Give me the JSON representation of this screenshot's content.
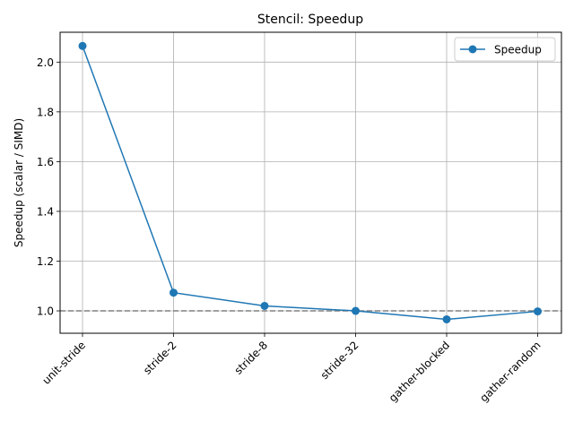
{
  "chart_data": {
    "type": "line",
    "title": "Stencil: Speedup",
    "xlabel": "",
    "ylabel": "Speedup (scalar / SIMD)",
    "categories": [
      "unit-stride",
      "stride-2",
      "stride-8",
      "stride-32",
      "gather-blocked",
      "gather-random"
    ],
    "series": [
      {
        "name": "Speedup",
        "values": [
          2.065,
          1.073,
          1.02,
          1.0,
          0.966,
          0.998
        ],
        "color": "#1f77b4",
        "marker": "circle"
      }
    ],
    "ylim": [
      0.91,
      2.12
    ],
    "yticks": [
      1.0,
      1.2,
      1.4,
      1.6,
      1.8,
      2.0
    ],
    "ytick_labels": [
      "1.0",
      "1.2",
      "1.4",
      "1.6",
      "1.8",
      "2.0"
    ],
    "reference_line": {
      "y": 1.0,
      "style": "dashed",
      "color": "#808080"
    },
    "grid": true,
    "legend_position": "top-right"
  }
}
